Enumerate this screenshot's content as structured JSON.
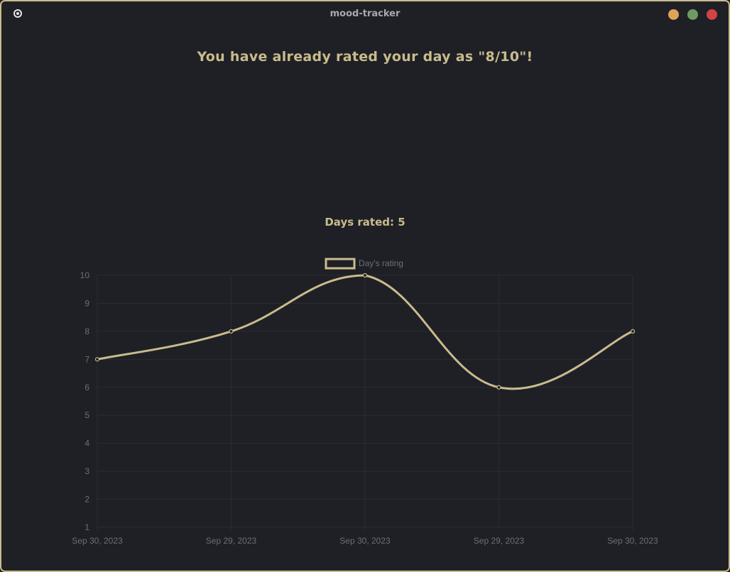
{
  "window": {
    "title": "mood-tracker",
    "buttons": [
      {
        "name": "minimize",
        "color": "#e0a259"
      },
      {
        "name": "maximize",
        "color": "#6f9a65"
      },
      {
        "name": "close",
        "color": "#d24346"
      }
    ]
  },
  "theme": {
    "accent": "#c9bc8c",
    "background": "#1f2026",
    "grid": "#2b2c31",
    "muted_text": "#6e6e72"
  },
  "main": {
    "heading": "You have already rated your day as \"8/10\"!",
    "days_rated": "Days rated: 5"
  },
  "chart_data": {
    "type": "line",
    "title": "",
    "xlabel": "",
    "ylabel": "",
    "categories": [
      "Sep 30, 2023",
      "Sep 29, 2023",
      "Sep 30, 2023",
      "Sep 29, 2023",
      "Sep 30, 2023"
    ],
    "series": [
      {
        "name": "Day's rating",
        "values": [
          7,
          8,
          10,
          6,
          8
        ]
      }
    ],
    "ylim": [
      1,
      10
    ],
    "yticks": [
      1,
      2,
      3,
      4,
      5,
      6,
      7,
      8,
      9,
      10
    ],
    "grid": true,
    "smooth": true,
    "legend": "top-center"
  }
}
